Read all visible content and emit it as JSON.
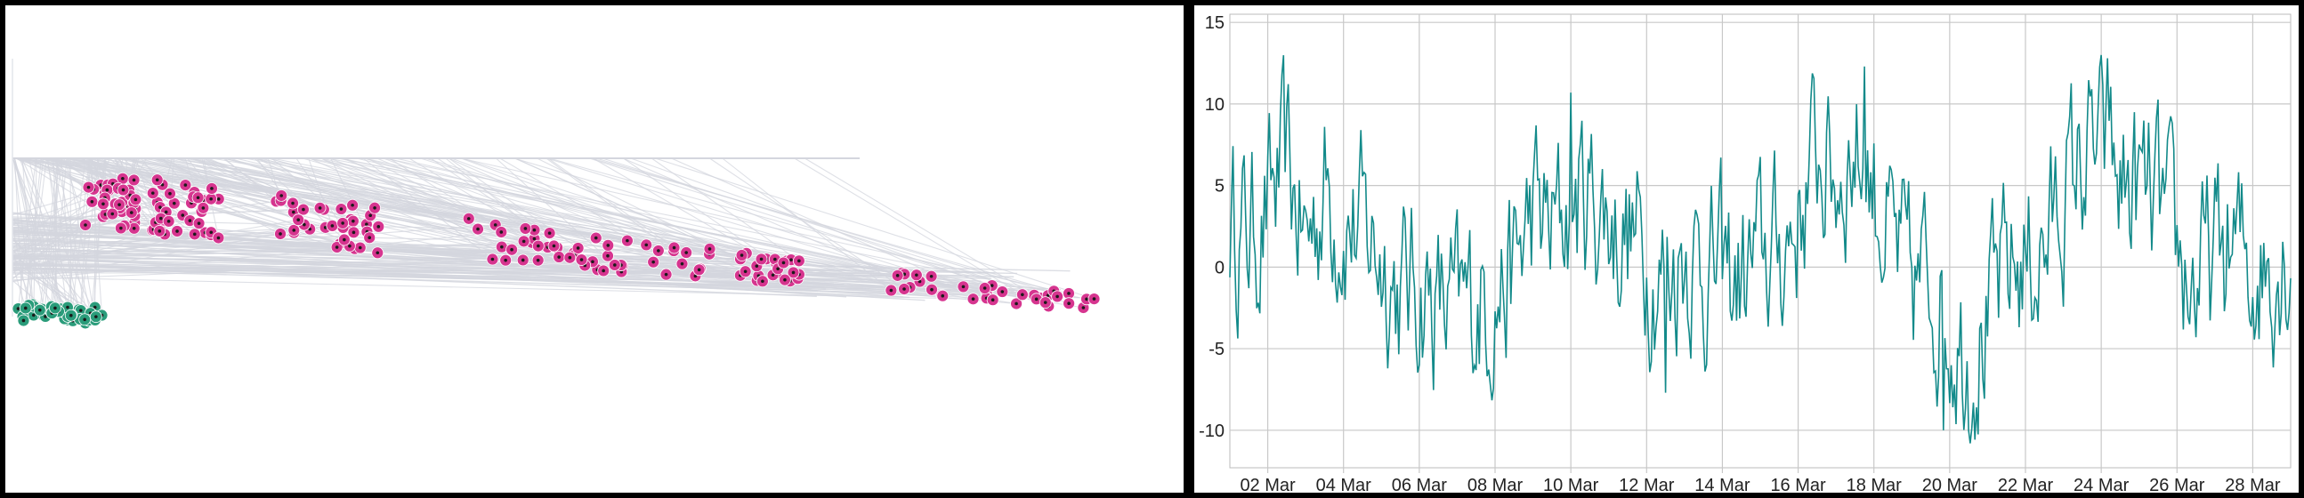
{
  "chart_data": [
    {
      "type": "scatter",
      "title": "",
      "xlabel": "",
      "ylabel": "",
      "grid": false,
      "colors": {
        "link": "#d4d6de",
        "pink": "#d6358f",
        "green": "#2a9c7a",
        "dot": "#1a1a1a"
      },
      "series": [
        {
          "color_key": "pink",
          "groups": [
            {
              "x": [
                90,
                150
              ],
              "y": [
                0.62,
                0.98
              ]
            },
            {
              "x": [
                165,
                240
              ],
              "y": [
                0.7,
                1.0
              ]
            },
            {
              "x": [
                300,
                420
              ],
              "y": [
                0.72,
                0.98
              ]
            },
            {
              "x": [
                520,
                700
              ],
              "y": [
                0.72,
                1.0
              ]
            },
            {
              "x": [
                720,
                900
              ],
              "y": [
                0.68,
                1.0
              ]
            },
            {
              "x": [
                995,
                1225
              ],
              "y": [
                0.7,
                1.0
              ]
            }
          ]
        },
        {
          "color_key": "green",
          "groups": [
            {
              "x": [
                10,
                115
              ],
              "y": [
                0.0,
                1.0
              ]
            }
          ]
        }
      ]
    },
    {
      "type": "line",
      "title": "",
      "xlabel": "",
      "ylabel": "",
      "grid": true,
      "line_color": "#138a8a",
      "x_start": "2021-03-01",
      "x_end": "2021-03-29",
      "x_ticks": [
        "02 Mar",
        "04 Mar",
        "06 Mar",
        "08 Mar",
        "10 Mar",
        "12 Mar",
        "14 Mar",
        "16 Mar",
        "18 Mar",
        "20 Mar",
        "22 Mar",
        "24 Mar",
        "26 Mar",
        "28 Mar"
      ],
      "x_tick_dates": [
        "2021-03-02",
        "2021-03-04",
        "2021-03-06",
        "2021-03-08",
        "2021-03-10",
        "2021-03-12",
        "2021-03-14",
        "2021-03-16",
        "2021-03-18",
        "2021-03-20",
        "2021-03-22",
        "2021-03-24",
        "2021-03-26",
        "2021-03-28"
      ],
      "y_ticks": [
        "15",
        "10",
        "5",
        "0",
        "-5",
        "-10"
      ],
      "ylim": [
        -12.3,
        15.5
      ],
      "series": [
        {
          "points": [
            [
              "2021-03-01",
              3.0
            ],
            [
              "2021-03-01T12:00",
              2.0
            ],
            [
              "2021-03-02",
              3.5
            ],
            [
              "2021-03-02T12:00",
              6.0
            ],
            [
              "2021-03-03",
              1.5
            ],
            [
              "2021-03-03T12:00",
              5.0
            ],
            [
              "2021-03-04",
              3.0
            ],
            [
              "2021-03-04T12:00",
              2.0
            ],
            [
              "2021-03-05",
              1.0
            ],
            [
              "2021-03-05T12:00",
              -1.5
            ],
            [
              "2021-03-06",
              -1.0
            ],
            [
              "2021-03-06T12:00",
              -2.5
            ],
            [
              "2021-03-07",
              -3.0
            ],
            [
              "2021-03-07T12:00",
              -2.0
            ],
            [
              "2021-03-08",
              -1.5
            ],
            [
              "2021-03-08T12:00",
              -0.5
            ],
            [
              "2021-03-09",
              3.5
            ],
            [
              "2021-03-09T12:00",
              2.0
            ],
            [
              "2021-03-10",
              4.0
            ],
            [
              "2021-03-10T12:00",
              4.5
            ],
            [
              "2021-03-11",
              3.0
            ],
            [
              "2021-03-11T12:00",
              2.0
            ],
            [
              "2021-03-12",
              1.0
            ],
            [
              "2021-03-12T12:00",
              -1.0
            ],
            [
              "2021-03-13",
              1.5
            ],
            [
              "2021-03-13T12:00",
              0.0
            ],
            [
              "2021-03-14",
              -0.5
            ],
            [
              "2021-03-14T12:00",
              -1.0
            ],
            [
              "2021-03-15",
              0.5
            ],
            [
              "2021-03-15T12:00",
              1.0
            ],
            [
              "2021-03-16",
              3.0
            ],
            [
              "2021-03-16T12:00",
              7.0
            ],
            [
              "2021-03-17",
              5.5
            ],
            [
              "2021-03-17T12:00",
              7.5
            ],
            [
              "2021-03-18",
              5.0
            ],
            [
              "2021-03-18T12:00",
              1.0
            ],
            [
              "2021-03-19",
              -1.5
            ],
            [
              "2021-03-19T12:00",
              -0.5
            ],
            [
              "2021-03-20",
              -3.5
            ],
            [
              "2021-03-20T12:00",
              -5.0
            ],
            [
              "2021-03-21",
              -3.5
            ],
            [
              "2021-03-21T12:00",
              -0.5
            ],
            [
              "2021-03-22",
              0.5
            ],
            [
              "2021-03-22T12:00",
              1.0
            ],
            [
              "2021-03-23",
              4.5
            ],
            [
              "2021-03-23T12:00",
              6.5
            ],
            [
              "2021-03-24",
              7.0
            ],
            [
              "2021-03-24T12:00",
              5.0
            ],
            [
              "2021-03-25",
              4.5
            ],
            [
              "2021-03-25T12:00",
              3.5
            ],
            [
              "2021-03-26",
              0.5
            ],
            [
              "2021-03-26T12:00",
              -1.0
            ],
            [
              "2021-03-27",
              0.5
            ],
            [
              "2021-03-27T12:00",
              1.0
            ],
            [
              "2021-03-28",
              0.0
            ],
            [
              "2021-03-28T12:00",
              0.5
            ],
            [
              "2021-03-29",
              1.5
            ]
          ],
          "extremes": [
            [
              "2021-03-10",
              10.7
            ],
            [
              "2021-03-17T18:00",
              12.3
            ],
            [
              "2021-03-24T04:00",
              12.8
            ],
            [
              "2021-03-19T20:00",
              -10.0
            ],
            [
              "2021-03-20T12:00",
              -10.0
            ],
            [
              "2021-03-12T12:00",
              -7.7
            ]
          ]
        }
      ]
    }
  ]
}
